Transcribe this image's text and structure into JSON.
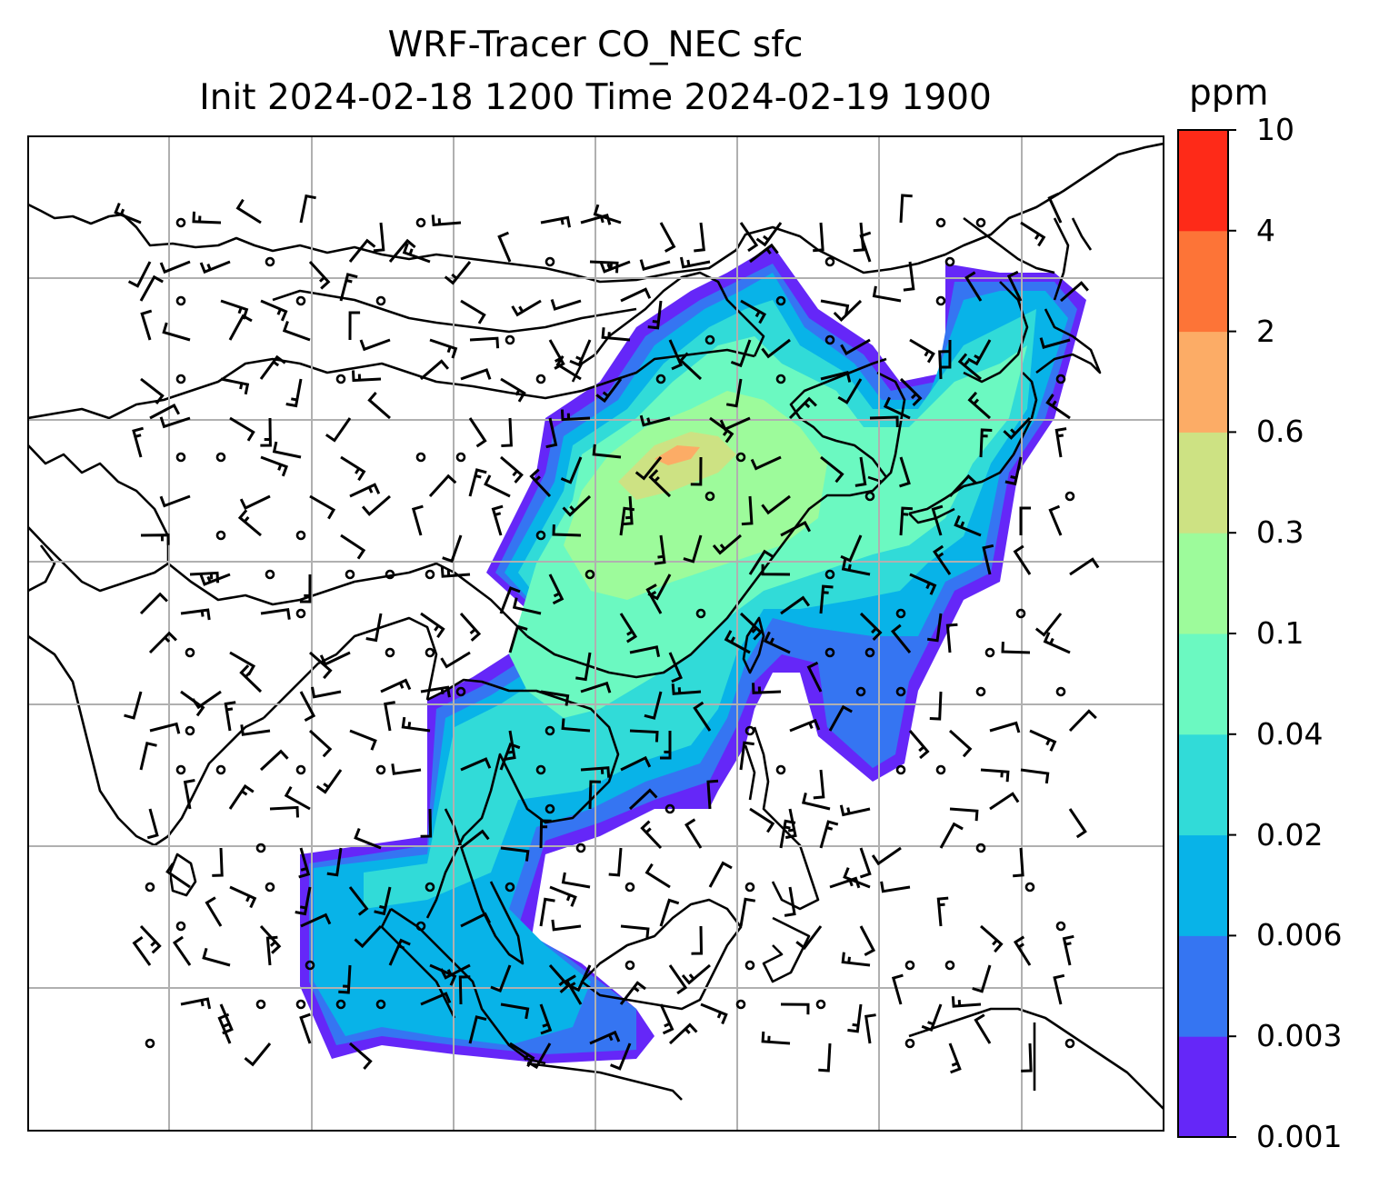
{
  "title": {
    "line1": "WRF-Tracer CO_NEC sfc",
    "line2": "Init 2024-02-18 1200 Time 2024-02-19 1900"
  },
  "colorbar": {
    "unit": "ppm",
    "levels": [
      "0.001",
      "0.003",
      "0.006",
      "0.02",
      "0.04",
      "0.1",
      "0.3",
      "0.6",
      "2",
      "4",
      "10"
    ],
    "colors": [
      "#6527f8",
      "#3575f2",
      "#08b3e8",
      "#31dbd8",
      "#6bf9c1",
      "#9dfb9b",
      "#cde283",
      "#fcac66",
      "#fd7437",
      "#fe2a18"
    ]
  },
  "map": {
    "layers": [
      "coastlines",
      "country-borders",
      "gridlines",
      "wind-barbs",
      "tracer-field"
    ],
    "gridlines": "on"
  }
}
